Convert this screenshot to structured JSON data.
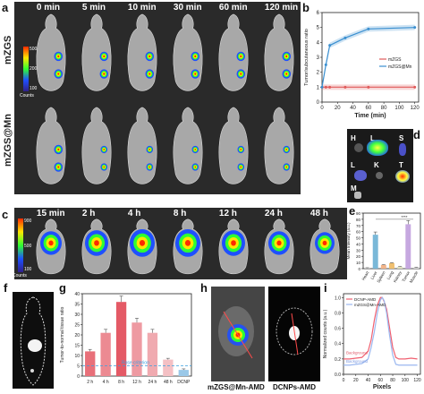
{
  "panels": {
    "a": {
      "label": "a",
      "times": [
        "0 min",
        "5 min",
        "10 min",
        "30 min",
        "60 min",
        "120 min"
      ],
      "rows": [
        "mZGS",
        "mZGS@Mn"
      ],
      "colorbar": {
        "max": "500",
        "mid": "200",
        "min": "100",
        "unit": "Counts"
      },
      "colors": {
        "high": "#ff2a00",
        "mid": "#ffe600",
        "low": "#1e50ff"
      }
    },
    "b": {
      "label": "b"
    },
    "c": {
      "label": "c",
      "times": [
        "15 min",
        "2 h",
        "4 h",
        "8 h",
        "12 h",
        "24 h",
        "48 h"
      ],
      "colorbar": {
        "max": "900",
        "mid": "500",
        "min": "100",
        "unit": "Counts"
      }
    },
    "d": {
      "label": "d",
      "organs": [
        "H",
        "L",
        "S",
        "L",
        "K",
        "T",
        "M"
      ]
    },
    "e": {
      "label": "e"
    },
    "f": {
      "label": "f"
    },
    "g": {
      "label": "g"
    },
    "h": {
      "label": "h",
      "captions": [
        "mZGS@Mn-AMD",
        "DCNPs-AMD"
      ]
    },
    "i": {
      "label": "i"
    }
  },
  "chart_data": [
    {
      "panel": "b",
      "type": "line",
      "xlabel": "Time (min)",
      "ylabel": "Tumor/subcutaneous ratio",
      "xlim": [
        0,
        125
      ],
      "ylim": [
        0,
        6
      ],
      "xticks": [
        "0",
        "20",
        "40",
        "60",
        "80",
        "100",
        "120"
      ],
      "yticks": [
        "0",
        "1",
        "2",
        "3",
        "4",
        "5",
        "6"
      ],
      "legend_position": "center-right",
      "series": [
        {
          "name": "mZGS",
          "color": "#e05a5a",
          "x": [
            0,
            5,
            10,
            30,
            60,
            120
          ],
          "y": [
            1.0,
            1.0,
            1.0,
            1.0,
            1.0,
            1.0
          ]
        },
        {
          "name": "mZGS@Mn",
          "color": "#3a8fd0",
          "x": [
            0,
            5,
            10,
            30,
            60,
            120
          ],
          "y": [
            1.0,
            2.5,
            3.8,
            4.3,
            4.9,
            5.0
          ]
        }
      ]
    },
    {
      "panel": "e",
      "type": "bar",
      "ylabel": "Mean Intensity (a.u.)",
      "ylim": [
        0,
        90
      ],
      "yticks": [
        "0",
        "10",
        "20",
        "30",
        "40",
        "50",
        "60",
        "70",
        "80",
        "90"
      ],
      "categories": [
        "Heart",
        "Liver",
        "Spleen",
        "Lung",
        "Kidney",
        "Tumor",
        "Muscle"
      ],
      "values": [
        1,
        55,
        6,
        9,
        3,
        72,
        2
      ],
      "colors": [
        "#c8c8c8",
        "#7ab8d8",
        "#f2b48a",
        "#f0c070",
        "#e0e0c0",
        "#c6a8e0",
        "#d8d8d8"
      ],
      "annotation": "****"
    },
    {
      "panel": "g",
      "type": "bar",
      "ylabel": "Tumor-to-normal tissue ratio",
      "ylim": [
        0,
        40
      ],
      "yticks": [
        "0",
        "5",
        "10",
        "15",
        "20",
        "25",
        "30",
        "35",
        "40"
      ],
      "categories": [
        "2 h",
        "4 h",
        "8 h",
        "12 h",
        "24 h",
        "48 h",
        "DCNP"
      ],
      "values": [
        12,
        21,
        36,
        26,
        21,
        8,
        3
      ],
      "colors": [
        "#e8707a",
        "#ec8a92",
        "#e45a66",
        "#ee9aa2",
        "#f0aab0",
        "#f4c0c4",
        "#9ac8e8"
      ],
      "reference_line": {
        "label": "Rose criterion",
        "value": 5
      }
    },
    {
      "panel": "i",
      "type": "line",
      "xlabel": "Pixels",
      "ylabel": "Normalized counts (a.u.)",
      "xlim": [
        0,
        125
      ],
      "ylim": [
        0,
        1.05
      ],
      "xticks": [
        "0",
        "20",
        "40",
        "60",
        "80",
        "100",
        "120"
      ],
      "yticks": [
        "0.0",
        "0.2",
        "0.4",
        "0.6",
        "0.8",
        "1.0"
      ],
      "legend_position": "top-left",
      "annotations": [
        "Background",
        "Background"
      ],
      "series": [
        {
          "name": "DCNP-AMD",
          "color": "#f06070",
          "x": [
            0,
            10,
            20,
            30,
            40,
            45,
            50,
            55,
            60,
            63,
            66,
            70,
            75,
            80,
            85,
            90,
            100,
            110,
            120
          ],
          "y": [
            0.2,
            0.2,
            0.21,
            0.22,
            0.3,
            0.45,
            0.7,
            0.9,
            1.0,
            1.0,
            0.95,
            0.85,
            0.6,
            0.35,
            0.22,
            0.2,
            0.2,
            0.21,
            0.2
          ]
        },
        {
          "name": "mZGS@Mn-AMD",
          "color": "#9bb8f0",
          "x": [
            0,
            10,
            20,
            30,
            40,
            45,
            50,
            55,
            60,
            63,
            66,
            70,
            75,
            80,
            85,
            90,
            100,
            110,
            120
          ],
          "y": [
            0.12,
            0.12,
            0.13,
            0.14,
            0.2,
            0.35,
            0.55,
            0.8,
            0.97,
            1.0,
            0.96,
            0.8,
            0.5,
            0.25,
            0.13,
            0.12,
            0.12,
            0.12,
            0.12
          ]
        }
      ]
    }
  ]
}
